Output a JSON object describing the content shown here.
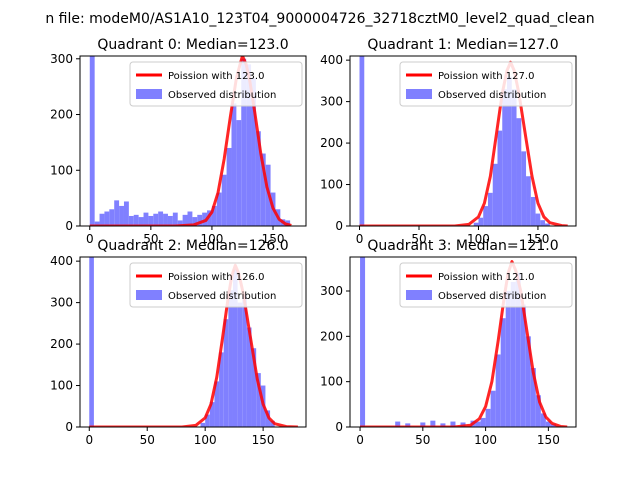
{
  "figure": {
    "suptitle": "n file: modeM0/AS1A10_123T04_9000004726_32718cztM0_level2_quad_clean"
  },
  "colors": {
    "hist": "#8080ff",
    "poisson": "#ff0000",
    "axis": "#000000",
    "background": "#ffffff"
  },
  "chart_data": [
    {
      "type": "bar",
      "title": "Quadrant 0: Median=123.0",
      "xlim": [
        -8,
        177
      ],
      "ylim": [
        0,
        305
      ],
      "xticks": [
        0,
        50,
        100,
        150
      ],
      "yticks": [
        0,
        100,
        200,
        300
      ],
      "legend": {
        "placement": "upper-right",
        "entries": [
          "Poission with 123.0",
          "Observed distribution"
        ]
      },
      "series": [
        {
          "name": "Observed distribution",
          "kind": "histogram",
          "bin_width": 4,
          "bins": [
            {
              "x": 0,
              "value": 305
            },
            {
              "x": 4,
              "value": 8
            },
            {
              "x": 8,
              "value": 22
            },
            {
              "x": 12,
              "value": 26
            },
            {
              "x": 16,
              "value": 30
            },
            {
              "x": 20,
              "value": 46
            },
            {
              "x": 24,
              "value": 36
            },
            {
              "x": 28,
              "value": 44
            },
            {
              "x": 32,
              "value": 18
            },
            {
              "x": 36,
              "value": 20
            },
            {
              "x": 40,
              "value": 16
            },
            {
              "x": 44,
              "value": 24
            },
            {
              "x": 48,
              "value": 18
            },
            {
              "x": 52,
              "value": 22
            },
            {
              "x": 56,
              "value": 26
            },
            {
              "x": 60,
              "value": 22
            },
            {
              "x": 64,
              "value": 18
            },
            {
              "x": 68,
              "value": 24
            },
            {
              "x": 72,
              "value": 10
            },
            {
              "x": 76,
              "value": 20
            },
            {
              "x": 80,
              "value": 26
            },
            {
              "x": 84,
              "value": 16
            },
            {
              "x": 88,
              "value": 20
            },
            {
              "x": 92,
              "value": 24
            },
            {
              "x": 96,
              "value": 28
            },
            {
              "x": 100,
              "value": 36
            },
            {
              "x": 104,
              "value": 60
            },
            {
              "x": 108,
              "value": 92
            },
            {
              "x": 112,
              "value": 140
            },
            {
              "x": 116,
              "value": 220
            },
            {
              "x": 120,
              "value": 190
            },
            {
              "x": 124,
              "value": 300
            },
            {
              "x": 128,
              "value": 290
            },
            {
              "x": 132,
              "value": 265
            },
            {
              "x": 136,
              "value": 170
            },
            {
              "x": 140,
              "value": 130
            },
            {
              "x": 144,
              "value": 110
            },
            {
              "x": 148,
              "value": 60
            },
            {
              "x": 152,
              "value": 30
            },
            {
              "x": 156,
              "value": 12
            },
            {
              "x": 160,
              "value": 10
            }
          ]
        },
        {
          "name": "Poission with 123.0",
          "kind": "line",
          "points": [
            [
              0,
              0
            ],
            [
              70,
              0
            ],
            [
              85,
              2
            ],
            [
              95,
              10
            ],
            [
              100,
              25
            ],
            [
              105,
              60
            ],
            [
              110,
              120
            ],
            [
              115,
              195
            ],
            [
              120,
              265
            ],
            [
              123,
              290
            ],
            [
              125,
              305
            ],
            [
              128,
              290
            ],
            [
              131,
              260
            ],
            [
              135,
              205
            ],
            [
              140,
              130
            ],
            [
              145,
              70
            ],
            [
              150,
              32
            ],
            [
              155,
              12
            ],
            [
              160,
              4
            ],
            [
              165,
              1
            ]
          ]
        }
      ]
    },
    {
      "type": "bar",
      "title": "Quadrant 1: Median=127.0",
      "xlim": [
        -8,
        182
      ],
      "ylim": [
        0,
        410
      ],
      "xticks": [
        0,
        50,
        100,
        150
      ],
      "yticks": [
        0,
        100,
        200,
        300,
        400
      ],
      "legend": {
        "placement": "upper-right",
        "entries": [
          "Poission with 127.0",
          "Observed distribution"
        ]
      },
      "series": [
        {
          "name": "Observed distribution",
          "kind": "histogram",
          "bin_width": 4,
          "bins": [
            {
              "x": 0,
              "value": 410
            },
            {
              "x": 96,
              "value": 8
            },
            {
              "x": 100,
              "value": 20
            },
            {
              "x": 104,
              "value": 48
            },
            {
              "x": 108,
              "value": 80
            },
            {
              "x": 112,
              "value": 150
            },
            {
              "x": 116,
              "value": 230
            },
            {
              "x": 120,
              "value": 330
            },
            {
              "x": 124,
              "value": 360
            },
            {
              "x": 128,
              "value": 330
            },
            {
              "x": 132,
              "value": 260
            },
            {
              "x": 136,
              "value": 180
            },
            {
              "x": 140,
              "value": 120
            },
            {
              "x": 144,
              "value": 70
            },
            {
              "x": 148,
              "value": 30
            },
            {
              "x": 152,
              "value": 14
            },
            {
              "x": 156,
              "value": 6
            }
          ]
        },
        {
          "name": "Poission with 127.0",
          "kind": "line",
          "points": [
            [
              0,
              0
            ],
            [
              80,
              0
            ],
            [
              92,
              4
            ],
            [
              100,
              22
            ],
            [
              105,
              55
            ],
            [
              110,
              120
            ],
            [
              115,
              220
            ],
            [
              120,
              320
            ],
            [
              124,
              375
            ],
            [
              127,
              395
            ],
            [
              130,
              375
            ],
            [
              134,
              320
            ],
            [
              140,
              210
            ],
            [
              145,
              120
            ],
            [
              150,
              55
            ],
            [
              155,
              22
            ],
            [
              160,
              8
            ],
            [
              170,
              1
            ],
            [
              175,
              0
            ]
          ]
        }
      ]
    },
    {
      "type": "bar",
      "title": "Quadrant 2: Median=126.0",
      "xlim": [
        -8,
        187
      ],
      "ylim": [
        0,
        410
      ],
      "xticks": [
        0,
        50,
        100,
        150
      ],
      "yticks": [
        0,
        100,
        200,
        300,
        400
      ],
      "legend": {
        "placement": "upper-right",
        "entries": [
          "Poission with 126.0",
          "Observed distribution"
        ]
      },
      "series": [
        {
          "name": "Observed distribution",
          "kind": "histogram",
          "bin_width": 4,
          "bins": [
            {
              "x": 0,
              "value": 410
            },
            {
              "x": 96,
              "value": 10
            },
            {
              "x": 100,
              "value": 30
            },
            {
              "x": 104,
              "value": 60
            },
            {
              "x": 108,
              "value": 110
            },
            {
              "x": 112,
              "value": 180
            },
            {
              "x": 116,
              "value": 260
            },
            {
              "x": 120,
              "value": 330
            },
            {
              "x": 124,
              "value": 380
            },
            {
              "x": 128,
              "value": 300
            },
            {
              "x": 132,
              "value": 320
            },
            {
              "x": 136,
              "value": 240
            },
            {
              "x": 140,
              "value": 190
            },
            {
              "x": 144,
              "value": 130
            },
            {
              "x": 148,
              "value": 100
            },
            {
              "x": 152,
              "value": 40
            },
            {
              "x": 156,
              "value": 15
            }
          ]
        },
        {
          "name": "Poission with 126.0",
          "kind": "line",
          "points": [
            [
              0,
              0
            ],
            [
              80,
              0
            ],
            [
              92,
              4
            ],
            [
              100,
              22
            ],
            [
              105,
              55
            ],
            [
              110,
              120
            ],
            [
              115,
              215
            ],
            [
              120,
              315
            ],
            [
              123,
              365
            ],
            [
              126,
              390
            ],
            [
              129,
              370
            ],
            [
              133,
              320
            ],
            [
              140,
              200
            ],
            [
              145,
              115
            ],
            [
              150,
              55
            ],
            [
              155,
              22
            ],
            [
              160,
              8
            ],
            [
              170,
              1
            ],
            [
              180,
              0
            ]
          ]
        }
      ]
    },
    {
      "type": "bar",
      "title": "Quadrant 3: Median=121.0",
      "xlim": [
        -8,
        172
      ],
      "ylim": [
        0,
        375
      ],
      "xticks": [
        0,
        50,
        100,
        150
      ],
      "yticks": [
        0,
        100,
        200,
        300
      ],
      "legend": {
        "placement": "upper-right",
        "entries": [
          "Poission with 121.0",
          "Observed distribution"
        ]
      },
      "series": [
        {
          "name": "Observed distribution",
          "kind": "histogram",
          "bin_width": 4,
          "bins": [
            {
              "x": 0,
              "value": 375
            },
            {
              "x": 28,
              "value": 12
            },
            {
              "x": 36,
              "value": 8
            },
            {
              "x": 48,
              "value": 10
            },
            {
              "x": 56,
              "value": 14
            },
            {
              "x": 64,
              "value": 8
            },
            {
              "x": 72,
              "value": 12
            },
            {
              "x": 80,
              "value": 10
            },
            {
              "x": 88,
              "value": 14
            },
            {
              "x": 92,
              "value": 12
            },
            {
              "x": 96,
              "value": 20
            },
            {
              "x": 100,
              "value": 40
            },
            {
              "x": 104,
              "value": 80
            },
            {
              "x": 108,
              "value": 160
            },
            {
              "x": 112,
              "value": 240
            },
            {
              "x": 116,
              "value": 300
            },
            {
              "x": 120,
              "value": 320
            },
            {
              "x": 124,
              "value": 340
            },
            {
              "x": 128,
              "value": 270
            },
            {
              "x": 132,
              "value": 200
            },
            {
              "x": 136,
              "value": 130
            },
            {
              "x": 140,
              "value": 70
            },
            {
              "x": 144,
              "value": 30
            },
            {
              "x": 148,
              "value": 12
            },
            {
              "x": 152,
              "value": 6
            }
          ]
        },
        {
          "name": "Poission with 121.0",
          "kind": "line",
          "points": [
            [
              0,
              0
            ],
            [
              75,
              0
            ],
            [
              88,
              4
            ],
            [
              95,
              18
            ],
            [
              100,
              45
            ],
            [
              105,
              100
            ],
            [
              110,
              190
            ],
            [
              115,
              290
            ],
            [
              118,
              340
            ],
            [
              121,
              365
            ],
            [
              124,
              345
            ],
            [
              128,
              300
            ],
            [
              133,
              210
            ],
            [
              138,
              120
            ],
            [
              143,
              55
            ],
            [
              148,
              22
            ],
            [
              153,
              8
            ],
            [
              160,
              1
            ],
            [
              165,
              0
            ]
          ]
        }
      ]
    }
  ]
}
